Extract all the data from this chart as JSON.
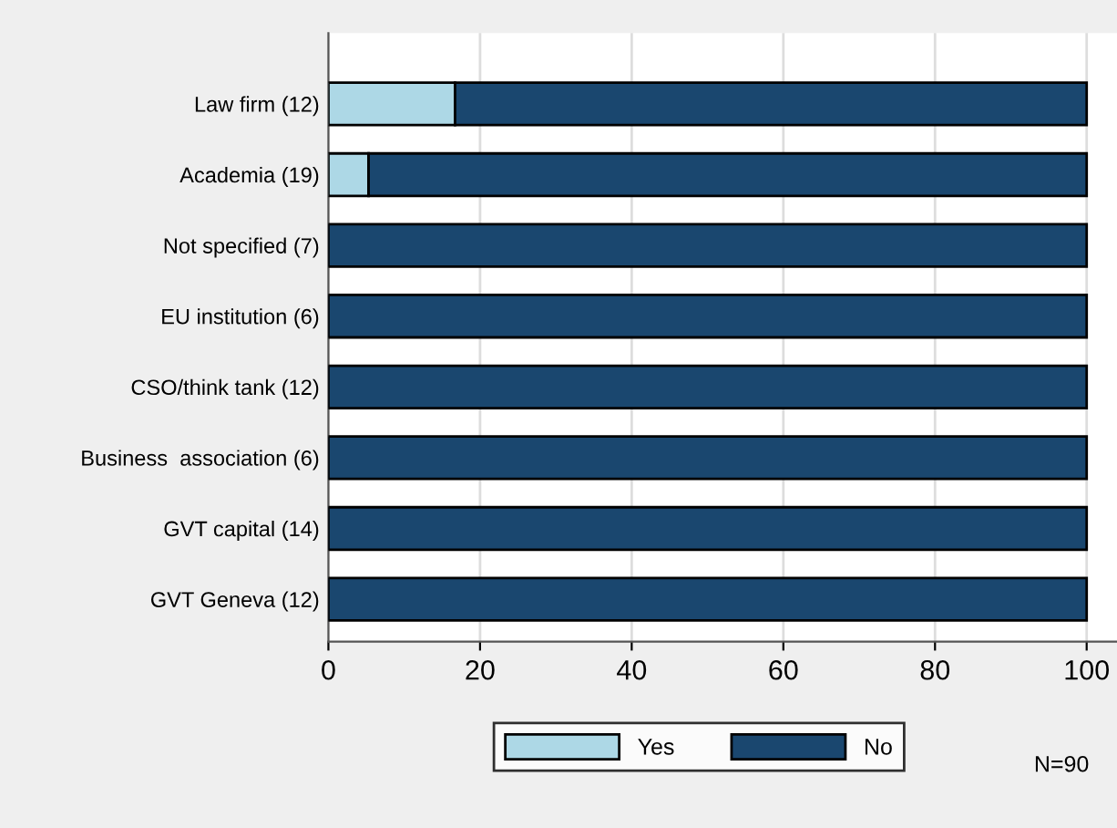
{
  "chart_data": {
    "type": "bar",
    "orientation": "horizontal",
    "stacked": true,
    "categories": [
      "Law firm (12)",
      "Academia (19)",
      "Not specified (7)",
      "EU institution (6)",
      "CSO/think tank (12)",
      "Business  association (6)",
      "GVT capital (14)",
      "GVT Geneva (12)"
    ],
    "series": [
      {
        "name": "Yes",
        "color": "#add8e6",
        "values": [
          16.7,
          5.3,
          0,
          0,
          0,
          0,
          0,
          0
        ]
      },
      {
        "name": "No",
        "color": "#1a476f",
        "values": [
          83.3,
          94.7,
          100,
          100,
          100,
          100,
          100,
          100
        ]
      }
    ],
    "xlim": [
      0,
      104
    ],
    "xticks": [
      0,
      20,
      40,
      60,
      80,
      100
    ],
    "grid": "x",
    "legend": "bottom",
    "annotations": [
      "N=90"
    ]
  }
}
